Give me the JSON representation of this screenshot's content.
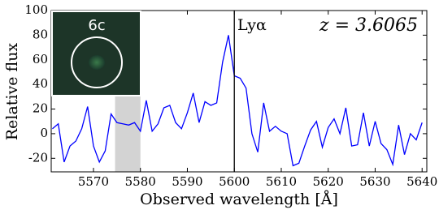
{
  "chart_data": {
    "type": "line",
    "x_label": "Observed wavelength [Å]",
    "y_label": "Relative flux",
    "annotations": [
      "Lyα",
      "z = 3.6065",
      "6c"
    ],
    "x": [
      5561.25,
      5562.5,
      5563.75,
      5565,
      5566.25,
      5567.5,
      5568.75,
      5570,
      5571.25,
      5572.5,
      5573.75,
      5575,
      5576.25,
      5577.5,
      5578.75,
      5580,
      5581.25,
      5582.5,
      5583.75,
      5585,
      5586.25,
      5587.5,
      5588.75,
      5590,
      5591.25,
      5592.5,
      5593.75,
      5595,
      5596.25,
      5597.5,
      5598.75,
      5600,
      5601.25,
      5602.5,
      5603.75,
      5605,
      5606.25,
      5607.5,
      5608.75,
      5610,
      5611.25,
      5612.5,
      5613.75,
      5615,
      5616.25,
      5617.5,
      5618.75,
      5620,
      5621.25,
      5622.5,
      5623.75,
      5625,
      5626.25,
      5627.5,
      5628.75,
      5630,
      5631.25,
      5632.5,
      5633.75,
      5635,
      5636.25,
      5637.5,
      5638.75,
      5640
    ],
    "series": [
      {
        "color": "#0000ff",
        "values": [
          4,
          8,
          -23,
          -10,
          -6,
          4,
          22,
          -10,
          -23,
          -14,
          16,
          9,
          8,
          7,
          9,
          2,
          27,
          2,
          8,
          21,
          23,
          9,
          4,
          17,
          33,
          9,
          26,
          23,
          25,
          58,
          80,
          47,
          45,
          37,
          0,
          -15,
          25,
          2,
          6,
          2,
          0,
          -26,
          -24,
          -10,
          3,
          10,
          -11,
          5,
          12,
          0,
          21,
          -10,
          -9,
          17,
          -10,
          10,
          -8,
          -13,
          -25,
          7,
          -17,
          0,
          -5,
          9
        ]
      }
    ],
    "vline": 5600,
    "vline_color": "#000000",
    "shade": [
      5574.6,
      5580
    ],
    "shade_color": "#d3d3d3",
    "xlim": [
      5561,
      5641
    ],
    "ylim": [
      -31,
      100
    ],
    "xticks": [
      5570,
      5580,
      5590,
      5600,
      5610,
      5620,
      5630,
      5640
    ],
    "yticks": [
      -20,
      0,
      20,
      40,
      60,
      80,
      100
    ]
  }
}
